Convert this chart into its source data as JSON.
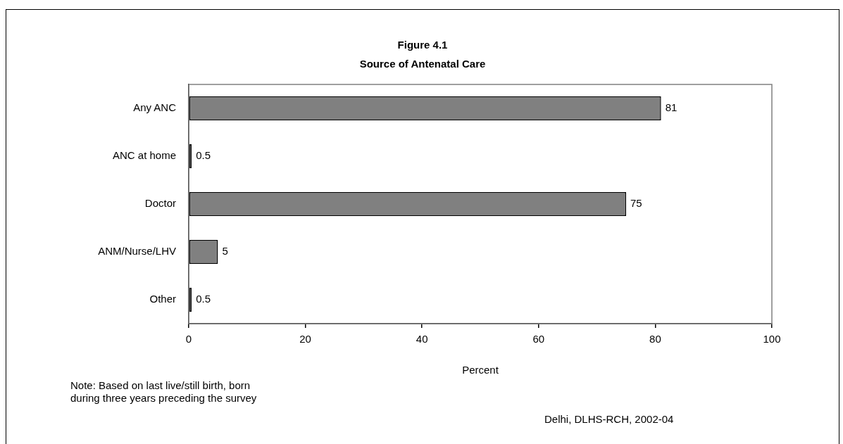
{
  "chart_data": {
    "type": "bar",
    "orientation": "horizontal",
    "title": "Figure 4.1\nSource of Antenatal Care",
    "xlabel": "Percent",
    "categories": [
      "Any ANC",
      "ANC at home",
      "Doctor",
      "ANM/Nurse/LHV",
      "Other"
    ],
    "values": [
      81,
      0.5,
      75,
      5,
      0.5
    ],
    "color": "#808080",
    "data_labels": true,
    "xlim": [
      0,
      100
    ],
    "xticks": [
      0,
      20,
      40,
      60,
      80,
      100
    ],
    "grid": false,
    "legend": false,
    "annotations": [
      "Note: Based on last live/still birth, born during three years preceding the survey",
      "Delhi, DLHS-RCH, 2002-04"
    ]
  }
}
